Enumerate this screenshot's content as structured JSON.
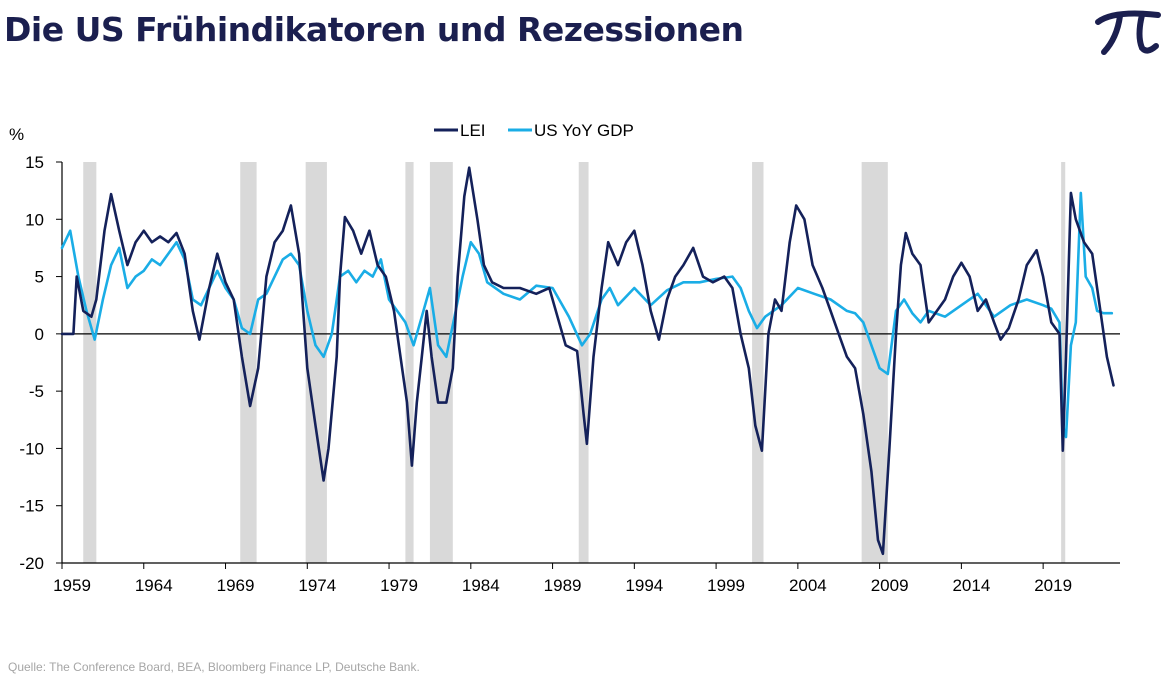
{
  "title": "Die US Frühindikatoren und Rezessionen",
  "logo_text": "Π",
  "source": "Quelle: The Conference Board, BEA, Bloomberg Finance LP, Deutsche Bank.",
  "colors": {
    "title": "#1b1f4f",
    "lei": "#14215a",
    "gdp": "#1aade6",
    "recession": "#d9d9d9",
    "axis": "#000000"
  },
  "chart_data": {
    "type": "line",
    "ylabel": "%",
    "ylim": [
      -20,
      15
    ],
    "xlim": [
      1959,
      2023.7
    ],
    "xticks": [
      1959,
      1964,
      1969,
      1974,
      1979,
      1984,
      1989,
      1994,
      1999,
      2004,
      2009,
      2014,
      2019
    ],
    "yticks": [
      15,
      10,
      5,
      0,
      -5,
      -10,
      -15,
      -20
    ],
    "legend_position": "top-center",
    "grid": false,
    "recessions": [
      [
        1960.3,
        1961.1
      ],
      [
        1969.9,
        1970.9
      ],
      [
        1973.9,
        1975.2
      ],
      [
        1980.0,
        1980.5
      ],
      [
        1981.5,
        1982.9
      ],
      [
        1990.6,
        1991.2
      ],
      [
        2001.2,
        2001.9
      ],
      [
        2007.9,
        2009.5
      ],
      [
        2020.1,
        2020.35
      ]
    ],
    "series": [
      {
        "name": "LEI",
        "color": "#14215a",
        "points": [
          [
            1959.0,
            0
          ],
          [
            1959.7,
            0
          ],
          [
            1959.9,
            5
          ],
          [
            1960.3,
            2
          ],
          [
            1960.8,
            1.5
          ],
          [
            1961.1,
            3
          ],
          [
            1961.6,
            9
          ],
          [
            1962.0,
            12.2
          ],
          [
            1962.5,
            9
          ],
          [
            1963.0,
            6
          ],
          [
            1963.5,
            8
          ],
          [
            1964.0,
            9
          ],
          [
            1964.5,
            8
          ],
          [
            1965.0,
            8.5
          ],
          [
            1965.5,
            8
          ],
          [
            1966.0,
            8.8
          ],
          [
            1966.5,
            7
          ],
          [
            1967.0,
            2
          ],
          [
            1967.4,
            -0.5
          ],
          [
            1968.0,
            4
          ],
          [
            1968.5,
            7
          ],
          [
            1969.0,
            4.5
          ],
          [
            1969.5,
            3
          ],
          [
            1970.0,
            -2
          ],
          [
            1970.5,
            -6.3
          ],
          [
            1971.0,
            -3
          ],
          [
            1971.5,
            5
          ],
          [
            1972.0,
            8
          ],
          [
            1972.5,
            9
          ],
          [
            1973.0,
            11.2
          ],
          [
            1973.5,
            7
          ],
          [
            1974.0,
            -3
          ],
          [
            1974.5,
            -8
          ],
          [
            1975.0,
            -12.8
          ],
          [
            1975.3,
            -10
          ],
          [
            1975.8,
            -2
          ],
          [
            1976.0,
            5
          ],
          [
            1976.3,
            10.2
          ],
          [
            1976.8,
            9
          ],
          [
            1977.3,
            7
          ],
          [
            1977.8,
            9
          ],
          [
            1978.3,
            6
          ],
          [
            1978.8,
            5
          ],
          [
            1979.3,
            2
          ],
          [
            1979.8,
            -3
          ],
          [
            1980.1,
            -6
          ],
          [
            1980.4,
            -11.5
          ],
          [
            1980.7,
            -6
          ],
          [
            1981.0,
            -2
          ],
          [
            1981.3,
            2
          ],
          [
            1981.6,
            -2
          ],
          [
            1982.0,
            -6
          ],
          [
            1982.5,
            -6
          ],
          [
            1982.9,
            -3
          ],
          [
            1983.2,
            5
          ],
          [
            1983.6,
            12
          ],
          [
            1983.9,
            14.5
          ],
          [
            1984.4,
            10
          ],
          [
            1984.8,
            6
          ],
          [
            1985.3,
            4.5
          ],
          [
            1986.0,
            4
          ],
          [
            1987.0,
            4
          ],
          [
            1988.0,
            3.5
          ],
          [
            1988.8,
            4
          ],
          [
            1989.3,
            1.5
          ],
          [
            1989.8,
            -1
          ],
          [
            1990.5,
            -1.5
          ],
          [
            1990.9,
            -7
          ],
          [
            1991.1,
            -9.6
          ],
          [
            1991.5,
            -2
          ],
          [
            1992.0,
            4
          ],
          [
            1992.4,
            8
          ],
          [
            1993.0,
            6
          ],
          [
            1993.5,
            8
          ],
          [
            1994.0,
            9
          ],
          [
            1994.5,
            6
          ],
          [
            1995.0,
            2
          ],
          [
            1995.5,
            -0.5
          ],
          [
            1996.0,
            3
          ],
          [
            1996.5,
            5
          ],
          [
            1997.0,
            6
          ],
          [
            1997.6,
            7.5
          ],
          [
            1998.2,
            5
          ],
          [
            1998.8,
            4.5
          ],
          [
            1999.5,
            5
          ],
          [
            2000.0,
            4
          ],
          [
            2000.5,
            0
          ],
          [
            2001.0,
            -3
          ],
          [
            2001.4,
            -8
          ],
          [
            2001.8,
            -10.2
          ],
          [
            2002.2,
            0
          ],
          [
            2002.6,
            3
          ],
          [
            2003.0,
            2
          ],
          [
            2003.5,
            8
          ],
          [
            2003.9,
            11.2
          ],
          [
            2004.4,
            10
          ],
          [
            2004.9,
            6
          ],
          [
            2005.5,
            4
          ],
          [
            2006.0,
            2
          ],
          [
            2006.5,
            0
          ],
          [
            2007.0,
            -2
          ],
          [
            2007.5,
            -3
          ],
          [
            2008.0,
            -7
          ],
          [
            2008.5,
            -12
          ],
          [
            2008.9,
            -18
          ],
          [
            2009.2,
            -19.2
          ],
          [
            2009.6,
            -10
          ],
          [
            2010.0,
            0
          ],
          [
            2010.3,
            6
          ],
          [
            2010.6,
            8.8
          ],
          [
            2011.0,
            7
          ],
          [
            2011.5,
            6
          ],
          [
            2012.0,
            1
          ],
          [
            2012.5,
            2
          ],
          [
            2013.0,
            3
          ],
          [
            2013.5,
            5
          ],
          [
            2014.0,
            6.2
          ],
          [
            2014.5,
            5
          ],
          [
            2015.0,
            2
          ],
          [
            2015.5,
            3
          ],
          [
            2016.0,
            1
          ],
          [
            2016.4,
            -0.5
          ],
          [
            2016.9,
            0.5
          ],
          [
            2017.5,
            3
          ],
          [
            2018.0,
            6
          ],
          [
            2018.6,
            7.3
          ],
          [
            2019.0,
            5
          ],
          [
            2019.5,
            1
          ],
          [
            2020.0,
            0
          ],
          [
            2020.2,
            -10.2
          ],
          [
            2020.4,
            -2
          ],
          [
            2020.7,
            12.3
          ],
          [
            2021.0,
            10
          ],
          [
            2021.5,
            8
          ],
          [
            2022.0,
            7
          ],
          [
            2022.5,
            2
          ],
          [
            2022.9,
            -2
          ],
          [
            2023.3,
            -4.5
          ]
        ]
      },
      {
        "name": "US YoY GDP",
        "color": "#1aade6",
        "points": [
          [
            1959.0,
            7.5
          ],
          [
            1959.5,
            9
          ],
          [
            1960.0,
            5
          ],
          [
            1960.5,
            2
          ],
          [
            1961.0,
            -0.5
          ],
          [
            1961.5,
            3
          ],
          [
            1962.0,
            6
          ],
          [
            1962.5,
            7.5
          ],
          [
            1963.0,
            4
          ],
          [
            1963.5,
            5
          ],
          [
            1964.0,
            5.5
          ],
          [
            1964.5,
            6.5
          ],
          [
            1965.0,
            6
          ],
          [
            1965.5,
            7
          ],
          [
            1966.0,
            8
          ],
          [
            1966.5,
            6.5
          ],
          [
            1967.0,
            3
          ],
          [
            1967.5,
            2.5
          ],
          [
            1968.0,
            4
          ],
          [
            1968.5,
            5.5
          ],
          [
            1969.0,
            4
          ],
          [
            1969.5,
            3
          ],
          [
            1970.0,
            0.5
          ],
          [
            1970.5,
            0
          ],
          [
            1971.0,
            3
          ],
          [
            1971.5,
            3.5
          ],
          [
            1972.0,
            5
          ],
          [
            1972.5,
            6.5
          ],
          [
            1973.0,
            7
          ],
          [
            1973.5,
            6
          ],
          [
            1974.0,
            2
          ],
          [
            1974.5,
            -1
          ],
          [
            1975.0,
            -2
          ],
          [
            1975.5,
            0
          ],
          [
            1976.0,
            5
          ],
          [
            1976.5,
            5.5
          ],
          [
            1977.0,
            4.5
          ],
          [
            1977.5,
            5.5
          ],
          [
            1978.0,
            5
          ],
          [
            1978.5,
            6.5
          ],
          [
            1979.0,
            3
          ],
          [
            1979.5,
            2
          ],
          [
            1980.0,
            1
          ],
          [
            1980.5,
            -1
          ],
          [
            1981.0,
            1.5
          ],
          [
            1981.5,
            4
          ],
          [
            1982.0,
            -1
          ],
          [
            1982.5,
            -2
          ],
          [
            1983.0,
            1.5
          ],
          [
            1983.5,
            5
          ],
          [
            1984.0,
            8
          ],
          [
            1984.5,
            7
          ],
          [
            1985.0,
            4.5
          ],
          [
            1986.0,
            3.5
          ],
          [
            1987.0,
            3
          ],
          [
            1988.0,
            4.2
          ],
          [
            1989.0,
            4
          ],
          [
            1990.0,
            1.5
          ],
          [
            1990.8,
            -1
          ],
          [
            1991.3,
            0
          ],
          [
            1992.0,
            3
          ],
          [
            1992.5,
            4
          ],
          [
            1993.0,
            2.5
          ],
          [
            1994.0,
            4
          ],
          [
            1995.0,
            2.5
          ],
          [
            1996.0,
            3.8
          ],
          [
            1997.0,
            4.5
          ],
          [
            1998.0,
            4.5
          ],
          [
            1999.0,
            4.8
          ],
          [
            2000.0,
            5
          ],
          [
            2000.5,
            4
          ],
          [
            2001.0,
            2
          ],
          [
            2001.5,
            0.5
          ],
          [
            2002.0,
            1.5
          ],
          [
            2003.0,
            2.5
          ],
          [
            2004.0,
            4
          ],
          [
            2005.0,
            3.5
          ],
          [
            2006.0,
            3
          ],
          [
            2007.0,
            2
          ],
          [
            2007.5,
            1.8
          ],
          [
            2008.0,
            1
          ],
          [
            2008.5,
            -1
          ],
          [
            2009.0,
            -3
          ],
          [
            2009.5,
            -3.5
          ],
          [
            2010.0,
            2
          ],
          [
            2010.5,
            3
          ],
          [
            2011.0,
            1.8
          ],
          [
            2011.5,
            1
          ],
          [
            2012.0,
            2
          ],
          [
            2013.0,
            1.5
          ],
          [
            2014.0,
            2.5
          ],
          [
            2015.0,
            3.5
          ],
          [
            2016.0,
            1.5
          ],
          [
            2017.0,
            2.5
          ],
          [
            2018.0,
            3
          ],
          [
            2019.0,
            2.5
          ],
          [
            2019.5,
            2.2
          ],
          [
            2020.0,
            1
          ],
          [
            2020.2,
            -8
          ],
          [
            2020.4,
            -9
          ],
          [
            2020.7,
            -1
          ],
          [
            2021.0,
            1
          ],
          [
            2021.3,
            12.3
          ],
          [
            2021.6,
            5
          ],
          [
            2022.0,
            4
          ],
          [
            2022.3,
            2
          ],
          [
            2022.7,
            1.8
          ],
          [
            2023.2,
            1.8
          ]
        ]
      }
    ]
  }
}
